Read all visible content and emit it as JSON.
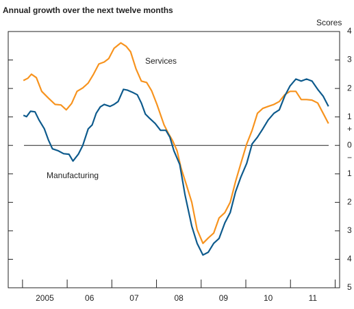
{
  "chart_data": {
    "type": "line",
    "title": "Annual growth over the next twelve months",
    "y_label": "Scores",
    "sign_labels": [
      "+",
      "−"
    ],
    "xlim": [
      2004.68,
      2012.1
    ],
    "xticks": [
      2005,
      2006,
      2007,
      2008,
      2009,
      2010,
      2011,
      2012
    ],
    "xtick_labels": [
      {
        "value": 2005.5,
        "label": "2005"
      },
      {
        "value": 2006.5,
        "label": "06"
      },
      {
        "value": 2007.5,
        "label": "07"
      },
      {
        "value": 2008.5,
        "label": "08"
      },
      {
        "value": 2009.5,
        "label": "09"
      },
      {
        "value": 2010.5,
        "label": "10"
      },
      {
        "value": 2011.5,
        "label": "11"
      }
    ],
    "ylim": [
      -5,
      4
    ],
    "yticks": [
      4,
      3,
      2,
      1,
      0,
      {
        "value": -1,
        "label": "1"
      },
      {
        "value": -2,
        "label": "2"
      },
      {
        "value": -3,
        "label": "3"
      },
      {
        "value": -4,
        "label": "4"
      },
      {
        "value": -5,
        "label": "5"
      }
    ],
    "series": [
      {
        "name": "Services",
        "color": "#f7931e",
        "x": [
          2005.02,
          2005.12,
          2005.2,
          2005.31,
          2005.43,
          2005.58,
          2005.73,
          2005.86,
          2005.98,
          2006.1,
          2006.22,
          2006.35,
          2006.47,
          2006.59,
          2006.71,
          2006.83,
          2006.93,
          2007.05,
          2007.2,
          2007.32,
          2007.42,
          2007.54,
          2007.66,
          2007.78,
          2007.89,
          2008.01,
          2008.17,
          2008.27,
          2008.36,
          2008.46,
          2008.55,
          2008.67,
          2008.79,
          2008.91,
          2009.04,
          2009.16,
          2009.28,
          2009.4,
          2009.53,
          2009.65,
          2009.77,
          2009.89,
          2010.02,
          2010.14,
          2010.26,
          2010.38,
          2010.5,
          2010.63,
          2010.75,
          2010.87,
          2010.99,
          2011.12,
          2011.24,
          2011.36,
          2011.48,
          2011.61,
          2011.73,
          2011.85
        ],
        "values": [
          2.28,
          2.36,
          2.5,
          2.38,
          1.9,
          1.66,
          1.44,
          1.42,
          1.25,
          1.47,
          1.9,
          2.02,
          2.19,
          2.5,
          2.86,
          2.93,
          3.05,
          3.41,
          3.6,
          3.48,
          3.29,
          2.69,
          2.26,
          2.21,
          1.92,
          1.44,
          0.72,
          0.41,
          0.17,
          -0.19,
          -0.79,
          -1.39,
          -2.0,
          -2.96,
          -3.44,
          -3.25,
          -3.08,
          -2.55,
          -2.36,
          -2.0,
          -1.27,
          -0.63,
          0.05,
          0.53,
          1.13,
          1.3,
          1.37,
          1.44,
          1.54,
          1.78,
          1.9,
          1.9,
          1.61,
          1.61,
          1.59,
          1.49,
          1.13,
          0.77
        ]
      },
      {
        "name": "Manufacturing",
        "color": "#0d5a8c",
        "x": [
          2005.02,
          2005.09,
          2005.18,
          2005.28,
          2005.37,
          2005.49,
          2005.58,
          2005.67,
          2005.8,
          2005.92,
          2006.04,
          2006.13,
          2006.25,
          2006.35,
          2006.47,
          2006.56,
          2006.65,
          2006.74,
          2006.83,
          2006.96,
          2007.05,
          2007.14,
          2007.26,
          2007.35,
          2007.48,
          2007.57,
          2007.66,
          2007.75,
          2007.84,
          2007.97,
          2008.09,
          2008.21,
          2008.3,
          2008.39,
          2008.52,
          2008.64,
          2008.79,
          2008.91,
          2009.04,
          2009.16,
          2009.28,
          2009.4,
          2009.53,
          2009.65,
          2009.77,
          2009.89,
          2010.02,
          2010.14,
          2010.26,
          2010.38,
          2010.5,
          2010.63,
          2010.75,
          2010.87,
          2010.99,
          2011.12,
          2011.24,
          2011.36,
          2011.48,
          2011.61,
          2011.73,
          2011.85
        ],
        "values": [
          1.06,
          1.01,
          1.2,
          1.18,
          0.89,
          0.58,
          0.19,
          -0.12,
          -0.19,
          -0.29,
          -0.31,
          -0.55,
          -0.31,
          0,
          0.58,
          0.72,
          1.13,
          1.35,
          1.44,
          1.37,
          1.44,
          1.54,
          1.97,
          1.94,
          1.85,
          1.78,
          1.49,
          1.1,
          0.96,
          0.77,
          0.53,
          0.53,
          0.29,
          -0.19,
          -0.67,
          -1.75,
          -2.84,
          -3.44,
          -3.85,
          -3.75,
          -3.44,
          -3.27,
          -2.72,
          -2.36,
          -1.63,
          -1.11,
          -0.63,
          0.05,
          0.29,
          0.58,
          0.89,
          1.13,
          1.25,
          1.73,
          2.09,
          2.33,
          2.26,
          2.33,
          2.26,
          1.97,
          1.73,
          1.37
        ]
      }
    ]
  }
}
